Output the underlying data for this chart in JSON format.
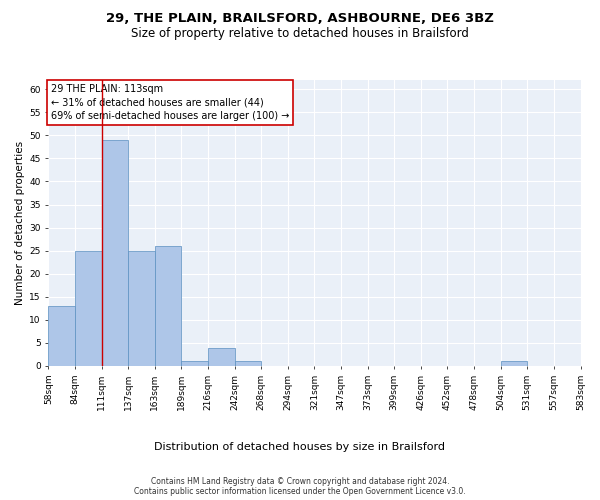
{
  "title1": "29, THE PLAIN, BRAILSFORD, ASHBOURNE, DE6 3BZ",
  "title2": "Size of property relative to detached houses in Brailsford",
  "xlabel": "Distribution of detached houses by size in Brailsford",
  "ylabel": "Number of detached properties",
  "bar_values": [
    13,
    25,
    49,
    25,
    26,
    1,
    4,
    1,
    0,
    0,
    0,
    0,
    0,
    0,
    0,
    0,
    0,
    1,
    0,
    0
  ],
  "bin_labels": [
    "58sqm",
    "84sqm",
    "111sqm",
    "137sqm",
    "163sqm",
    "189sqm",
    "216sqm",
    "242sqm",
    "268sqm",
    "294sqm",
    "321sqm",
    "347sqm",
    "373sqm",
    "399sqm",
    "426sqm",
    "452sqm",
    "478sqm",
    "504sqm",
    "531sqm",
    "557sqm",
    "583sqm"
  ],
  "bar_color": "#aec6e8",
  "bar_edge_color": "#5a8fc0",
  "background_color": "#eaf0f8",
  "grid_color": "#ffffff",
  "ylim": [
    0,
    62
  ],
  "yticks": [
    0,
    5,
    10,
    15,
    20,
    25,
    30,
    35,
    40,
    45,
    50,
    55,
    60
  ],
  "annotation_box_text": "29 THE PLAIN: 113sqm\n← 31% of detached houses are smaller (44)\n69% of semi-detached houses are larger (100) →",
  "annotation_box_color": "#cc0000",
  "red_line_x": 2,
  "footer1": "Contains HM Land Registry data © Crown copyright and database right 2024.",
  "footer2": "Contains public sector information licensed under the Open Government Licence v3.0.",
  "title1_fontsize": 9.5,
  "title2_fontsize": 8.5,
  "xlabel_fontsize": 8,
  "ylabel_fontsize": 7.5,
  "tick_fontsize": 6.5,
  "annot_fontsize": 7,
  "footer_fontsize": 5.5
}
